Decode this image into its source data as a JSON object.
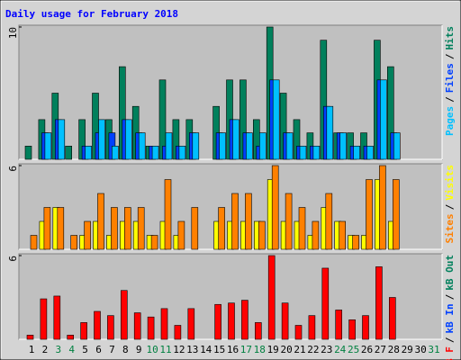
{
  "chart_data": [
    {
      "type": "bar",
      "title": "Daily usage for February 2018",
      "ylim": [
        0,
        10
      ],
      "yticks": [
        10
      ],
      "legend_separator": "/",
      "series": [
        {
          "name": "Hits",
          "color": "#00805c",
          "values": [
            1,
            3,
            5,
            1,
            3,
            5,
            3,
            7,
            4,
            1,
            6,
            3,
            3,
            0,
            4,
            6,
            6,
            3,
            10,
            5,
            3,
            2,
            9,
            2,
            2,
            2,
            9,
            7,
            null,
            null,
            null
          ]
        },
        {
          "name": "Files",
          "color": "#0040ff",
          "values": [
            0,
            2,
            3,
            0,
            1,
            2,
            2,
            3,
            2,
            1,
            1,
            1,
            2,
            0,
            2,
            3,
            2,
            1,
            6,
            2,
            1,
            1,
            4,
            2,
            1,
            1,
            6,
            2,
            null,
            null,
            null
          ]
        },
        {
          "name": "Pages",
          "color": "#00c0ff",
          "values": [
            0,
            2,
            3,
            0,
            1,
            3,
            1,
            3,
            2,
            1,
            2,
            1,
            2,
            0,
            2,
            3,
            2,
            2,
            6,
            2,
            1,
            1,
            4,
            2,
            1,
            1,
            6,
            2,
            null,
            null,
            null
          ]
        }
      ]
    },
    {
      "type": "bar",
      "ylim": [
        0,
        6
      ],
      "yticks": [
        6
      ],
      "legend_separator": "/",
      "series": [
        {
          "name": "Visits",
          "color": "#ffff00",
          "values": [
            0,
            2,
            3,
            0,
            1,
            2,
            1,
            2,
            2,
            1,
            2,
            1,
            0,
            0,
            2,
            2,
            2,
            2,
            5,
            2,
            2,
            1,
            3,
            2,
            1,
            1,
            5,
            2,
            null,
            null,
            null
          ]
        },
        {
          "name": "Sites",
          "color": "#ff8000",
          "values": [
            1,
            3,
            3,
            1,
            2,
            4,
            3,
            3,
            3,
            1,
            5,
            2,
            3,
            0,
            3,
            4,
            4,
            2,
            6,
            4,
            3,
            2,
            4,
            2,
            1,
            5,
            6,
            5,
            null,
            null,
            null
          ]
        }
      ]
    },
    {
      "type": "bar",
      "ylim": [
        0,
        6
      ],
      "yticks": [
        6
      ],
      "legend_separator": "/",
      "categories": [
        "1",
        "2",
        "3",
        "4",
        "5",
        "6",
        "7",
        "8",
        "9",
        "10",
        "11",
        "12",
        "13",
        "14",
        "15",
        "16",
        "17",
        "18",
        "19",
        "20",
        "21",
        "22",
        "23",
        "24",
        "25",
        "26",
        "27",
        "28",
        "29",
        "30",
        "31"
      ],
      "category_colors": [
        "#000000",
        "#000000",
        "#008040",
        "#008040",
        "#000000",
        "#000000",
        "#000000",
        "#000000",
        "#000000",
        "#008040",
        "#008040",
        "#000000",
        "#000000",
        "#000000",
        "#000000",
        "#000000",
        "#008040",
        "#008040",
        "#000000",
        "#000000",
        "#000000",
        "#000000",
        "#000000",
        "#008040",
        "#008040",
        "#000000",
        "#000000",
        "#000000",
        "#000000",
        "#000000",
        "#008040"
      ],
      "series": [
        {
          "name": "kB Out",
          "color": "#00805c",
          "values": [
            0,
            0,
            0,
            0,
            0,
            0,
            0,
            0,
            0,
            0,
            0,
            0,
            0,
            0,
            0,
            0,
            0,
            0,
            0,
            0,
            0,
            0,
            0,
            0,
            0,
            0,
            0,
            0,
            null,
            null,
            null
          ]
        },
        {
          "name": "kB In",
          "color": "#0040ff",
          "values": [
            0,
            0,
            0,
            0,
            0,
            0,
            0,
            0,
            0,
            0,
            0,
            0,
            0,
            0,
            0,
            0,
            0,
            0,
            0,
            0,
            0,
            0,
            0,
            0,
            0,
            0,
            0,
            0,
            null,
            null,
            null
          ]
        },
        {
          "name": "kB F",
          "color": "#ff0000",
          "values": [
            0.3,
            2.9,
            3.1,
            0.3,
            1.2,
            2.0,
            1.7,
            3.5,
            1.9,
            1.6,
            2.2,
            1.0,
            2.2,
            0,
            2.5,
            2.6,
            2.8,
            1.2,
            6.0,
            2.6,
            1.0,
            1.7,
            5.1,
            2.1,
            1.4,
            1.7,
            5.2,
            3.0,
            null,
            null,
            null
          ]
        }
      ]
    }
  ]
}
